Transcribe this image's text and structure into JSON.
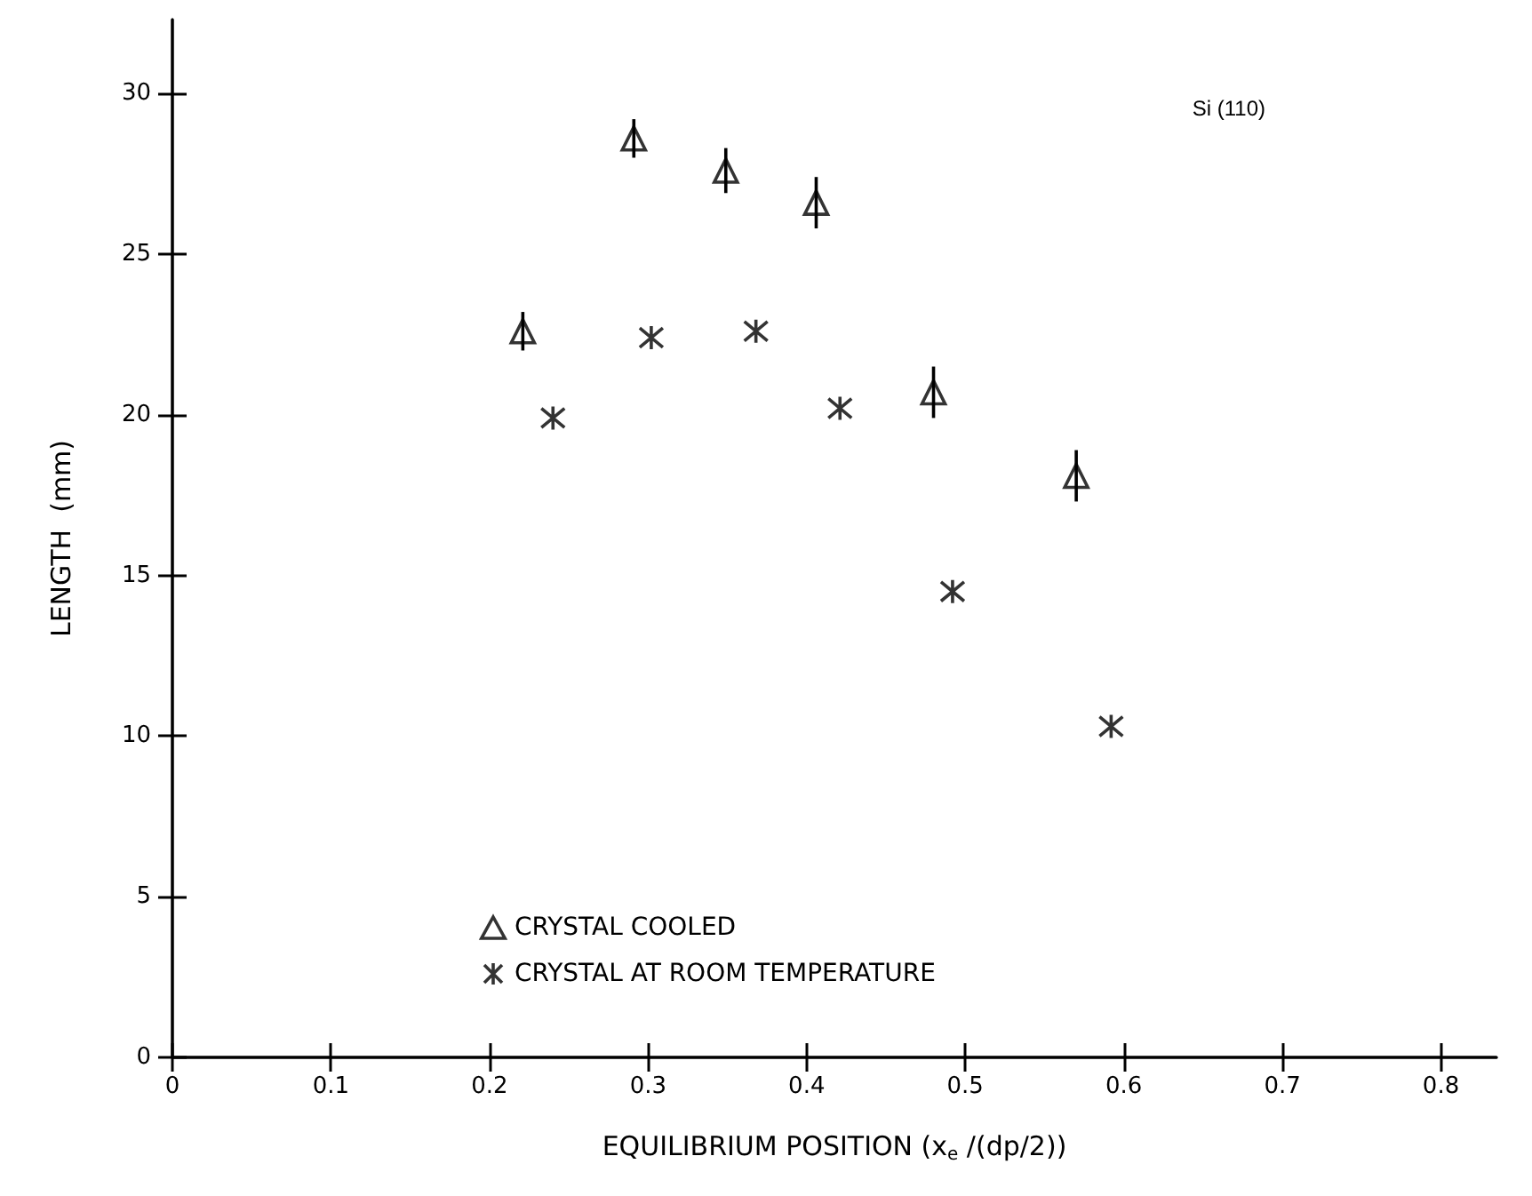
{
  "chart_data": {
    "type": "scatter",
    "xlabel": "EQUILIBRIUM POSITION (x$_{e}$ /(dp/2))",
    "ylabel": "LENGTH  (mm)",
    "annotations": [
      "Si (110)"
    ],
    "xlim": [
      0,
      0.835
    ],
    "xticks": [
      0,
      0.1,
      0.2,
      0.3,
      0.4,
      0.5,
      0.6,
      0.7,
      0.8
    ],
    "ylim": [
      0,
      32.3
    ],
    "yticks": [
      0,
      5,
      10,
      15,
      20,
      25,
      30
    ],
    "grid": false,
    "legend": "bottom left",
    "series": [
      {
        "name": "CRYSTAL COOLED",
        "color": "#000000",
        "marker": "triangle",
        "x": [
          0.221,
          0.291,
          0.349,
          0.406,
          0.48,
          0.57
        ],
        "values": [
          22.6,
          28.6,
          27.6,
          26.6,
          20.7,
          18.1
        ],
        "errors": [
          0.6,
          0.6,
          0.7,
          0.8,
          0.8,
          0.8
        ]
      },
      {
        "name": "CRYSTAL AT ROOM TEMPERATURE",
        "color": "#000000",
        "marker": "cross",
        "x": [
          0.24,
          0.302,
          0.368,
          0.421,
          0.492,
          0.592
        ],
        "values": [
          19.9,
          22.4,
          22.6,
          20.2,
          14.5,
          10.3
        ]
      }
    ]
  }
}
